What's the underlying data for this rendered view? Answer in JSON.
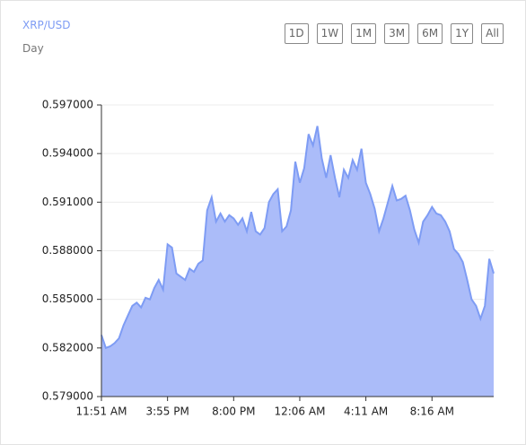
{
  "chart_data": {
    "type": "area",
    "title": "XRP/USD",
    "subtitle": "Day",
    "categories": [
      "11:51 AM",
      null,
      null,
      null,
      null,
      null,
      null,
      null,
      null,
      null,
      null,
      null,
      null,
      null,
      null,
      "3:55 PM",
      null,
      null,
      null,
      null,
      null,
      null,
      null,
      null,
      null,
      null,
      null,
      null,
      null,
      null,
      "8:00 PM",
      null,
      null,
      null,
      null,
      null,
      null,
      null,
      null,
      null,
      null,
      null,
      null,
      null,
      null,
      "12:06 AM",
      null,
      null,
      null,
      null,
      null,
      null,
      null,
      null,
      null,
      null,
      null,
      null,
      null,
      null,
      "4:11 AM",
      null,
      null,
      null,
      null,
      null,
      null,
      null,
      null,
      null,
      null,
      null,
      null,
      null,
      null,
      "8:16 AM",
      null,
      null,
      null,
      null,
      null,
      null,
      null,
      null,
      null,
      null,
      null,
      null,
      null,
      null
    ],
    "values": [
      0.5828,
      0.582,
      0.5821,
      0.5823,
      0.5826,
      0.5834,
      0.584,
      0.5846,
      0.5848,
      0.5845,
      0.5851,
      0.585,
      0.5857,
      0.5862,
      0.5856,
      0.5884,
      0.5882,
      0.5866,
      0.5864,
      0.5862,
      0.5869,
      0.5867,
      0.5872,
      0.5874,
      0.5905,
      0.5913,
      0.5898,
      0.5903,
      0.5898,
      0.5902,
      0.59,
      0.5896,
      0.59,
      0.5892,
      0.5904,
      0.5892,
      0.589,
      0.5894,
      0.591,
      0.5915,
      0.5918,
      0.5892,
      0.5895,
      0.5905,
      0.5935,
      0.5922,
      0.5931,
      0.5952,
      0.5945,
      0.5957,
      0.5937,
      0.5925,
      0.5939,
      0.5925,
      0.5913,
      0.593,
      0.5925,
      0.5936,
      0.593,
      0.5943,
      0.5922,
      0.5915,
      0.5906,
      0.5892,
      0.59,
      0.591,
      0.592,
      0.5911,
      0.5912,
      0.5914,
      0.5905,
      0.5893,
      0.5885,
      0.5898,
      0.5902,
      0.5907,
      0.5903,
      0.5902,
      0.5898,
      0.5892,
      0.5881,
      0.5878,
      0.5873,
      0.5862,
      0.585,
      0.5846,
      0.5838,
      0.5846,
      0.5875,
      0.5866
    ],
    "color": "#7e9cf4",
    "fill": "#abbcf9",
    "ylim": [
      0.579,
      0.597
    ],
    "yticks": [
      {
        "value": 0.579,
        "label": "0.579000"
      },
      {
        "value": 0.582,
        "label": "0.582000"
      },
      {
        "value": 0.585,
        "label": "0.585000"
      },
      {
        "value": 0.588,
        "label": "0.588000"
      },
      {
        "value": 0.591,
        "label": "0.591000"
      },
      {
        "value": 0.594,
        "label": "0.594000"
      },
      {
        "value": 0.597,
        "label": "0.597000"
      }
    ],
    "grid": true
  },
  "toolbar": {
    "buttons": [
      "1D",
      "1W",
      "1M",
      "3M",
      "6M",
      "1Y",
      "All"
    ]
  }
}
